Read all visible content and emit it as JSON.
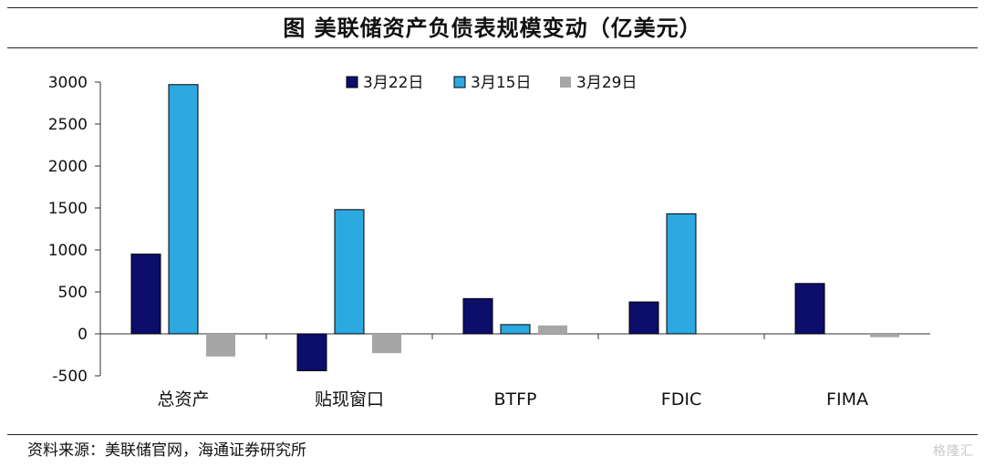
{
  "title": "图  美联储资产负债表规模变动（亿美元）",
  "source": "资料来源：美联储官网，海通证券研究所",
  "watermark": "格隆汇",
  "colors": {
    "series_0": "#0d0d6b",
    "series_1": "#2ba9e0",
    "series_2": "#a6a6a6"
  },
  "chart_data": {
    "type": "bar",
    "categories": [
      "总资产",
      "贴现窗口",
      "BTFP",
      "FDIC",
      "FIMA"
    ],
    "series": [
      {
        "name": "3月22日",
        "values": [
          950,
          -440,
          420,
          380,
          600
        ]
      },
      {
        "name": "3月15日",
        "values": [
          2970,
          1480,
          110,
          1430,
          0
        ]
      },
      {
        "name": "3月29日",
        "values": [
          -270,
          -230,
          100,
          0,
          -40
        ]
      }
    ],
    "ylim": [
      -500,
      3000
    ],
    "yticks": [
      "3000",
      "2500",
      "2000",
      "1500",
      "1000",
      "500",
      "0",
      "-500"
    ],
    "legend": "top-center",
    "grid": false
  }
}
